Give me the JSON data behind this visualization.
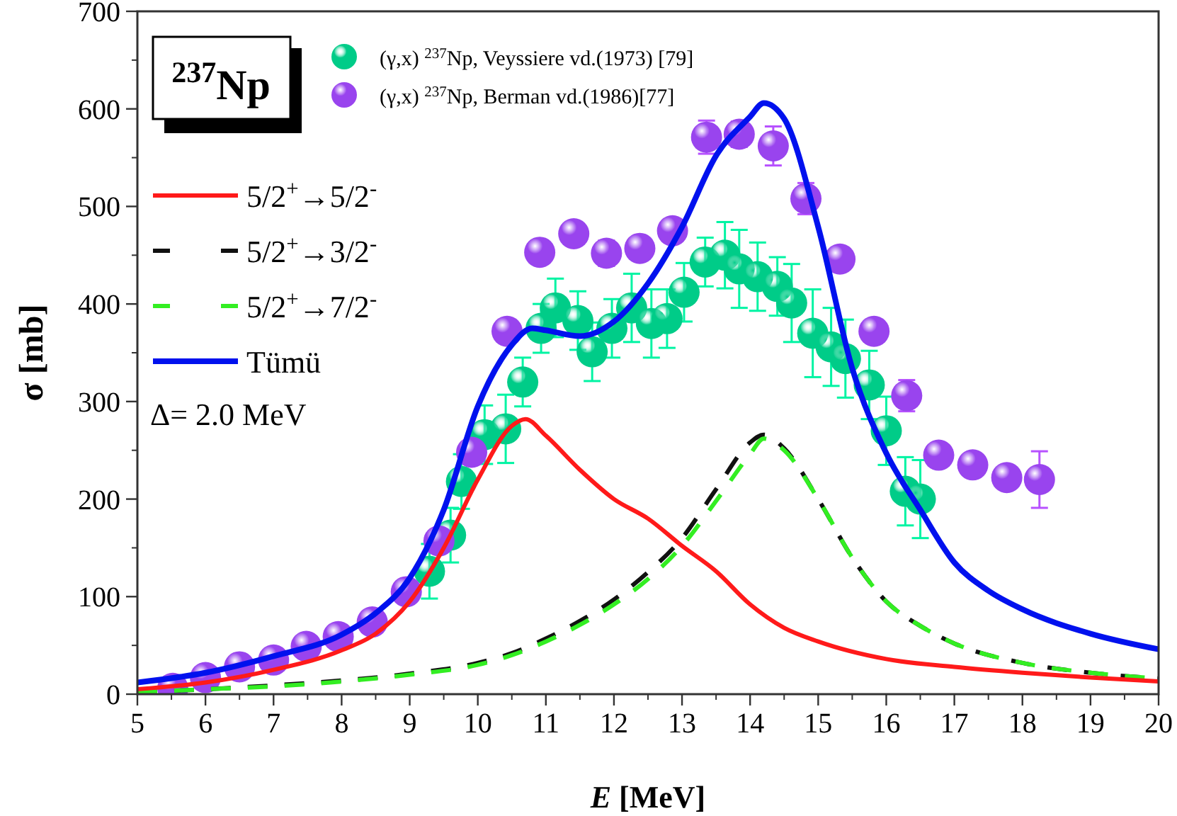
{
  "chart_data": {
    "type": "line",
    "xlabel": "E [MeV]",
    "ylabel": "σ [mb]",
    "annotations": [
      "$^{237}$Np",
      "Δ= 2.0 MeV"
    ],
    "xlim": [
      5,
      20
    ],
    "xticks": [
      5,
      6,
      7,
      8,
      9,
      10,
      11,
      12,
      13,
      14,
      15,
      16,
      17,
      18,
      19,
      20
    ],
    "ylim": [
      0,
      700
    ],
    "yticks": [
      0,
      100,
      200,
      300,
      400,
      500,
      600,
      700
    ],
    "legend": "top left",
    "series": [
      {
        "name": "(γ,x) $^{237}$Np, Veyssiere vd.(1973) [79]",
        "type": "scatter",
        "marker": "circle",
        "color": "#00cc88",
        "x": [
          9.29,
          9.6,
          9.76,
          10.1,
          10.41,
          10.66,
          10.93,
          11.14,
          11.47,
          11.68,
          11.97,
          12.26,
          12.55,
          12.78,
          13.03,
          13.34,
          13.63,
          13.84,
          14.11,
          14.4,
          14.61,
          14.92,
          15.19,
          15.4,
          15.75,
          16.0,
          16.28,
          16.5
        ],
        "values": [
          126,
          163,
          218,
          266,
          272,
          320,
          375,
          396,
          383,
          351,
          375,
          396,
          380,
          385,
          412,
          443,
          450,
          436,
          428,
          418,
          401,
          370,
          356,
          344,
          317,
          270,
          208,
          200
        ],
        "errors": [
          28,
          28,
          28,
          30,
          35,
          25,
          25,
          30,
          30,
          30,
          30,
          35,
          35,
          30,
          30,
          25,
          34,
          40,
          35,
          30,
          40,
          45,
          40,
          40,
          35,
          35,
          35,
          40
        ]
      },
      {
        "name": "(γ,x) $^{237}$Np, Berman vd.(1986)[77]",
        "type": "scatter",
        "marker": "circle",
        "color": "#9944ee",
        "x": [
          5.52,
          6.0,
          6.5,
          7.0,
          7.48,
          7.95,
          8.45,
          8.95,
          9.43,
          9.91,
          10.43,
          10.91,
          11.41,
          11.89,
          12.38,
          12.86,
          13.36,
          13.84,
          14.34,
          14.82,
          15.32,
          15.82,
          16.3,
          16.77,
          17.27,
          17.77,
          18.25
        ],
        "values": [
          6,
          17,
          28,
          35,
          49,
          59,
          74,
          105,
          157,
          248,
          372,
          453,
          472,
          452,
          457,
          475,
          571,
          574,
          562,
          508,
          446,
          372,
          306,
          245,
          235,
          222,
          220
        ],
        "errors": [
          null,
          12,
          null,
          null,
          null,
          null,
          null,
          null,
          null,
          null,
          null,
          null,
          null,
          13,
          null,
          null,
          17,
          13,
          20,
          16,
          null,
          12,
          16,
          null,
          null,
          null,
          29
        ]
      },
      {
        "name": "5/2$^{+}$→5/2$^{-}$",
        "type": "line",
        "line_style": "solid",
        "color": "#ff1a1a",
        "x": [
          5,
          6,
          7,
          8,
          8.5,
          9,
          9.5,
          10,
          10.5,
          10.7,
          11,
          11.5,
          12,
          12.5,
          13,
          13.5,
          14,
          14.5,
          15,
          16,
          17,
          18,
          19,
          20
        ],
        "values": [
          5,
          12,
          25,
          45,
          62,
          95,
          150,
          220,
          275,
          282,
          265,
          230,
          200,
          180,
          152,
          126,
          92,
          68,
          54,
          36,
          28,
          22,
          17,
          13
        ]
      },
      {
        "name": "5/2$^{+}$→3/2$^{-}$",
        "type": "line",
        "line_style": "dashed",
        "color": "#111111",
        "x": [
          5,
          6,
          7,
          8,
          9,
          10,
          10.5,
          11,
          11.5,
          12,
          12.5,
          13,
          13.5,
          14,
          14.2,
          14.5,
          15,
          15.5,
          16,
          16.5,
          17,
          18,
          19,
          20
        ],
        "values": [
          2,
          5,
          9,
          14,
          21,
          32,
          42,
          57,
          75,
          97,
          125,
          160,
          210,
          258,
          266,
          252,
          200,
          140,
          95,
          70,
          52,
          32,
          22,
          16
        ]
      },
      {
        "name": "5/2$^{+}$→7/2$^{-}$",
        "type": "line",
        "line_style": "dashed",
        "color": "#33ee22",
        "x": [
          5,
          6,
          7,
          8,
          9,
          10,
          10.5,
          11,
          11.5,
          12,
          12.5,
          13,
          13.5,
          14,
          14.2,
          14.5,
          15,
          15.5,
          16,
          16.5,
          17,
          18,
          19,
          20
        ],
        "values": [
          2,
          5,
          8,
          13,
          20,
          30,
          40,
          54,
          71,
          92,
          118,
          152,
          198,
          246,
          262,
          250,
          200,
          140,
          95,
          70,
          52,
          32,
          22,
          16
        ]
      },
      {
        "name": "Tümü",
        "type": "line",
        "line_style": "solid",
        "color": "#0011ee",
        "x": [
          5,
          6,
          7,
          8,
          8.5,
          9,
          9.5,
          10,
          10.5,
          10.8,
          11,
          11.5,
          12,
          12.5,
          13,
          13.5,
          14,
          14.2,
          14.5,
          15,
          15.5,
          16,
          16.5,
          17,
          17.5,
          18,
          19,
          20
        ],
        "values": [
          12,
          22,
          39,
          61,
          83,
          119,
          189,
          295,
          358,
          375,
          373,
          367,
          382,
          421,
          479,
          552,
          592,
          606,
          590,
          479,
          334,
          247,
          189,
          135,
          106,
          87,
          62,
          46
        ]
      }
    ]
  }
}
